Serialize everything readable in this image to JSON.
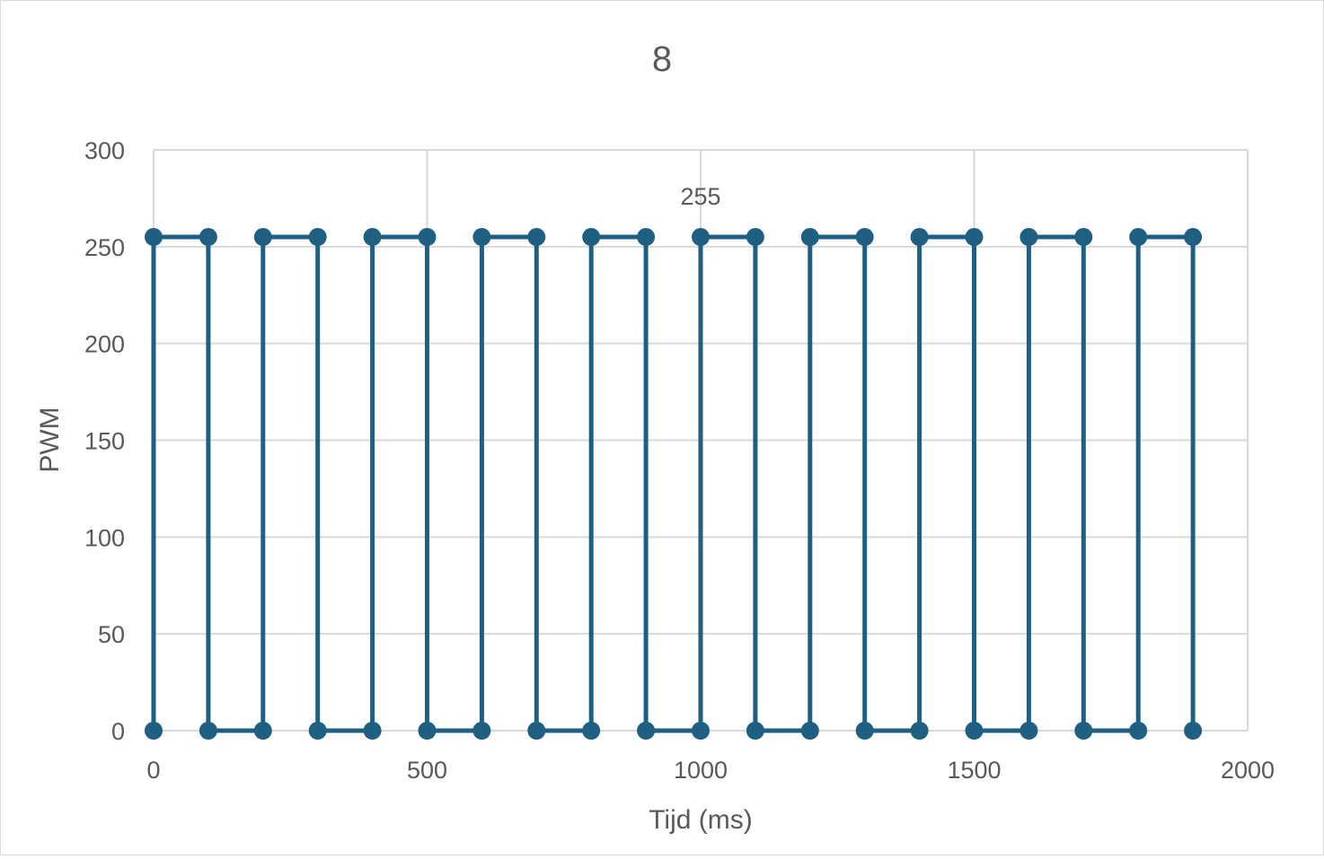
{
  "chart_data": {
    "type": "scatter",
    "title": "8",
    "xlabel": "Tijd (ms)",
    "ylabel": "PWM",
    "xlim": [
      0,
      2000
    ],
    "ylim": [
      0,
      300
    ],
    "xticks": [
      0,
      500,
      1000,
      1500,
      2000
    ],
    "yticks": [
      0,
      50,
      100,
      150,
      200,
      250,
      300
    ],
    "grid": true,
    "legend": "none",
    "marker": "circle",
    "lines": "straight",
    "color": "#1f5f82",
    "data_label": {
      "x": 1000,
      "y": 255,
      "text": "255"
    },
    "series": [
      {
        "x": [
          0,
          0,
          100,
          100,
          200,
          200,
          300,
          300,
          400,
          400,
          500,
          500,
          600,
          600,
          700,
          700,
          800,
          800,
          900,
          900,
          1000,
          1000,
          1100,
          1100,
          1200,
          1200,
          1300,
          1300,
          1400,
          1400,
          1500,
          1500,
          1600,
          1600,
          1700,
          1700,
          1800,
          1800,
          1900,
          1900
        ],
        "y": [
          0,
          255,
          255,
          0,
          0,
          255,
          255,
          0,
          0,
          255,
          255,
          0,
          0,
          255,
          255,
          0,
          0,
          255,
          255,
          0,
          0,
          255,
          255,
          0,
          0,
          255,
          255,
          0,
          0,
          255,
          255,
          0,
          0,
          255,
          255,
          0,
          0,
          255,
          255,
          0
        ]
      }
    ]
  }
}
